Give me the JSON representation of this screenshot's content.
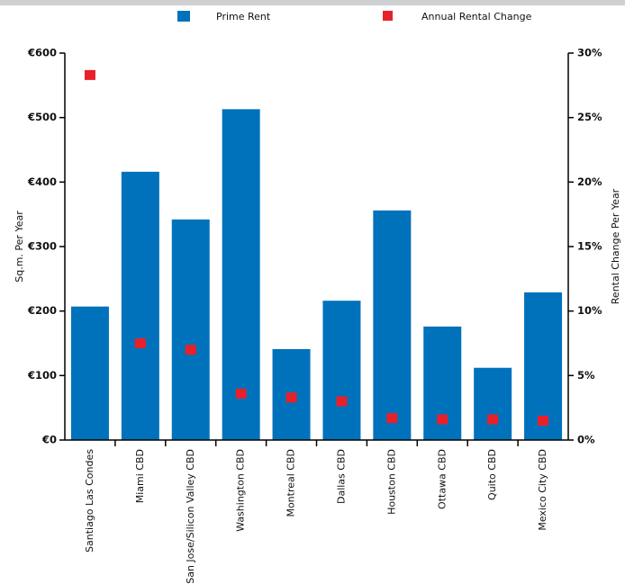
{
  "chart_data": {
    "type": "bar",
    "categories": [
      "Santiago Las Condes",
      "Miami CBD",
      "San Jose/Silicon Valley CBD",
      "Washington CBD",
      "Montreal CBD",
      "Dallas CBD",
      "Houston CBD",
      "Ottawa CBD",
      "Quito CBD",
      "Mexico City CBD"
    ],
    "series": [
      {
        "name": "Prime Rent",
        "color": "#0072bb",
        "type": "bar",
        "values": [
          207,
          416,
          342,
          513,
          141,
          216,
          356,
          176,
          112,
          229
        ]
      },
      {
        "name": "Annual Rental Change",
        "color": "#e8202a",
        "type": "scatter",
        "axis": "y2",
        "values": [
          28.3,
          7.5,
          7.0,
          3.6,
          3.3,
          3.0,
          1.7,
          1.6,
          1.6,
          1.5
        ]
      }
    ],
    "ylabel": "Sq.m. Per Year",
    "y2label": "Rental Change Per Year",
    "ylim": [
      0,
      600
    ],
    "yticks": [
      {
        "value": 0,
        "label": "€0"
      },
      {
        "value": 100,
        "label": "€100"
      },
      {
        "value": 200,
        "label": "€200"
      },
      {
        "value": 300,
        "label": "€300"
      },
      {
        "value": 400,
        "label": "€400"
      },
      {
        "value": 500,
        "label": "€500"
      },
      {
        "value": 600,
        "label": "€600"
      }
    ],
    "y2lim": [
      0,
      30
    ],
    "y2ticks": [
      {
        "value": 0,
        "label": "0%"
      },
      {
        "value": 5,
        "label": "5%"
      },
      {
        "value": 10,
        "label": "10%"
      },
      {
        "value": 15,
        "label": "15%"
      },
      {
        "value": 20,
        "label": "20%"
      },
      {
        "value": 25,
        "label": "25%"
      },
      {
        "value": 30,
        "label": "30%"
      }
    ],
    "legend": "top"
  }
}
